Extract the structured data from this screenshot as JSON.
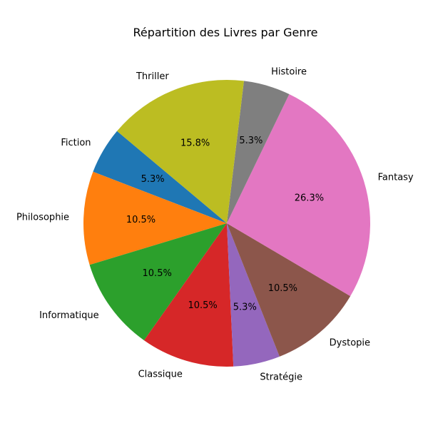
{
  "chart_data": {
    "type": "pie",
    "title": "Répartition des Livres par Genre",
    "categories": [
      "Fiction",
      "Philosophie",
      "Informatique",
      "Classique",
      "Stratégie",
      "Dystopie",
      "Fantasy",
      "Histoire",
      "Thriller"
    ],
    "values": [
      1,
      2,
      2,
      2,
      1,
      2,
      5,
      1,
      3
    ],
    "percent_labels": [
      "5.3%",
      "10.5%",
      "10.5%",
      "10.5%",
      "5.3%",
      "10.5%",
      "26.3%",
      "5.3%",
      "15.8%"
    ],
    "colors": [
      "#1f77b4",
      "#ff7f0e",
      "#2ca02c",
      "#d62728",
      "#9467bd",
      "#8c564b",
      "#e377c2",
      "#7f7f7f",
      "#bcbd22"
    ],
    "start_angle_deg": 140,
    "direction": "counterclockwise"
  }
}
